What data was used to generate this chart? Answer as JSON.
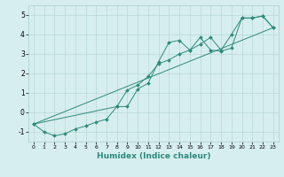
{
  "xlabel": "Humidex (Indice chaleur)",
  "ylabel": "",
  "xlim": [
    -0.5,
    23.5
  ],
  "ylim": [
    -1.5,
    5.5
  ],
  "xticks": [
    0,
    1,
    2,
    3,
    4,
    5,
    6,
    7,
    8,
    9,
    10,
    11,
    12,
    13,
    14,
    15,
    16,
    17,
    18,
    19,
    20,
    21,
    22,
    23
  ],
  "yticks": [
    -1,
    0,
    1,
    2,
    3,
    4,
    5
  ],
  "bg_color": "#d7eeee",
  "line_color": "#2d8b7a",
  "grid_color": "#b8d8d8",
  "series": [
    {
      "x": [
        0,
        1,
        2,
        3,
        4,
        5,
        6,
        7,
        8,
        9,
        10,
        11,
        12,
        13,
        14,
        15,
        16,
        17,
        18,
        19,
        20,
        21,
        22,
        23
      ],
      "y": [
        -0.6,
        -1.0,
        -1.2,
        -1.1,
        -0.85,
        -0.7,
        -0.5,
        -0.35,
        0.3,
        0.3,
        1.2,
        1.5,
        2.6,
        3.6,
        3.7,
        3.2,
        3.85,
        3.2,
        3.15,
        3.3,
        4.85,
        4.85,
        4.95,
        4.35
      ]
    },
    {
      "x": [
        0,
        8,
        9,
        10,
        11,
        12,
        13,
        14,
        15,
        16,
        17,
        18,
        19,
        20,
        21,
        22,
        23
      ],
      "y": [
        -0.6,
        0.3,
        1.15,
        1.4,
        1.85,
        2.5,
        2.7,
        3.0,
        3.2,
        3.5,
        3.85,
        3.2,
        4.0,
        4.85,
        4.85,
        4.95,
        4.35
      ]
    },
    {
      "x": [
        0,
        23
      ],
      "y": [
        -0.6,
        4.35
      ]
    }
  ]
}
